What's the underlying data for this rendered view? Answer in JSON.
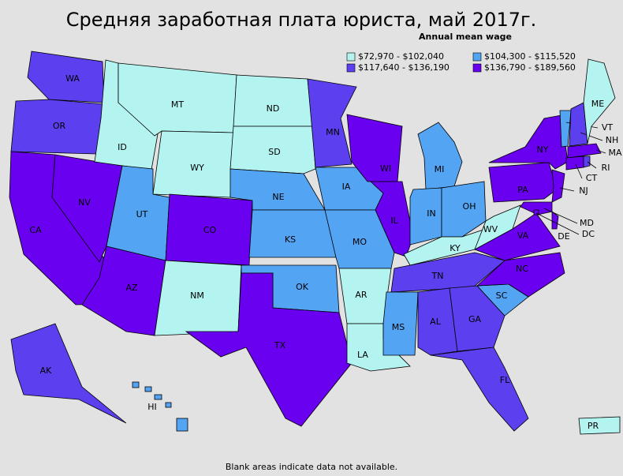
{
  "title": "Средняя заработная плата юриста, май 2017г.",
  "legend": {
    "title": "Annual mean wage",
    "items": [
      {
        "label": "$72,970 - $102,040",
        "color": "#b4f4f0"
      },
      {
        "label": "$104,300 - $115,520",
        "color": "#54a4f4"
      },
      {
        "label": "$117,640 - $136,190",
        "color": "#5c40f0"
      },
      {
        "label": "$136,790 - $189,560",
        "color": "#6a00f0"
      }
    ]
  },
  "states": [
    {
      "label": "WA",
      "class": 2
    },
    {
      "label": "OR",
      "class": 2
    },
    {
      "label": "CA",
      "class": 3
    },
    {
      "label": "NV",
      "class": 3
    },
    {
      "label": "ID",
      "class": 0
    },
    {
      "label": "MT",
      "class": 0
    },
    {
      "label": "WY",
      "class": 0
    },
    {
      "label": "UT",
      "class": 1
    },
    {
      "label": "AZ",
      "class": 3
    },
    {
      "label": "CO",
      "class": 3
    },
    {
      "label": "NM",
      "class": 0
    },
    {
      "label": "ND",
      "class": 0
    },
    {
      "label": "SD",
      "class": 0
    },
    {
      "label": "NE",
      "class": 1
    },
    {
      "label": "KS",
      "class": 1
    },
    {
      "label": "OK",
      "class": 1
    },
    {
      "label": "TX",
      "class": 3
    },
    {
      "label": "MN",
      "class": 2
    },
    {
      "label": "IA",
      "class": 1
    },
    {
      "label": "MO",
      "class": 1
    },
    {
      "label": "AR",
      "class": 0
    },
    {
      "label": "LA",
      "class": 0
    },
    {
      "label": "WI",
      "class": 3
    },
    {
      "label": "IL",
      "class": 3
    },
    {
      "label": "MI",
      "class": 1
    },
    {
      "label": "IN",
      "class": 1
    },
    {
      "label": "OH",
      "class": 1
    },
    {
      "label": "KY",
      "class": 0
    },
    {
      "label": "TN",
      "class": 2
    },
    {
      "label": "MS",
      "class": 1
    },
    {
      "label": "AL",
      "class": 2
    },
    {
      "label": "GA",
      "class": 2
    },
    {
      "label": "FL",
      "class": 2
    },
    {
      "label": "SC",
      "class": 1
    },
    {
      "label": "NC",
      "class": 3
    },
    {
      "label": "VA",
      "class": 3
    },
    {
      "label": "WV",
      "class": 0
    },
    {
      "label": "PA",
      "class": 3
    },
    {
      "label": "NY",
      "class": 3
    },
    {
      "label": "VT",
      "class": 1
    },
    {
      "label": "NH",
      "class": 2
    },
    {
      "label": "ME",
      "class": 0
    },
    {
      "label": "MA",
      "class": 3
    },
    {
      "label": "CT",
      "class": 3
    },
    {
      "label": "RI",
      "class": 2
    },
    {
      "label": "NJ",
      "class": 3
    },
    {
      "label": "DE",
      "class": 3
    },
    {
      "label": "MD",
      "class": 3
    },
    {
      "label": "DC",
      "class": 3
    },
    {
      "label": "AK",
      "class": 2
    },
    {
      "label": "HI",
      "class": 1
    },
    {
      "label": "PR",
      "class": 0
    }
  ],
  "footnote": "Blank areas indicate data not available."
}
